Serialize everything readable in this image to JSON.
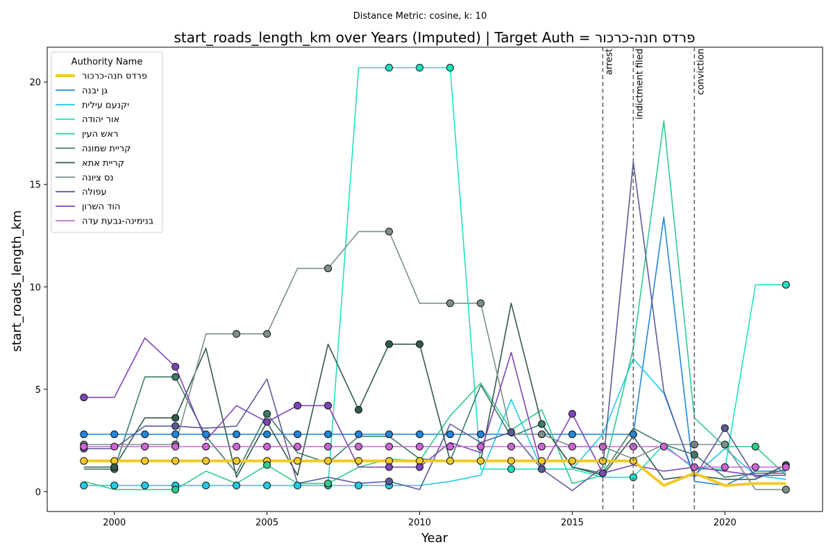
{
  "chart_data": {
    "type": "line",
    "suptitle": "Distance Metric: cosine, k: 10",
    "title": "start_roads_length_km over Years (Imputed) | Target Auth = פרדס חנה-כרכור",
    "xlabel": "Year",
    "ylabel": "start_roads_length_km",
    "xlim": [
      1997.8,
      2023.2
    ],
    "ylim": [
      -0.97,
      21.7
    ],
    "xticks": [
      2000,
      2005,
      2010,
      2015,
      2020
    ],
    "yticks": [
      0,
      5,
      10,
      15,
      20
    ],
    "grid": false,
    "legend": {
      "title": "Authority Name",
      "placement": "top-left"
    },
    "x": [
      1999,
      2000,
      2001,
      2002,
      2003,
      2004,
      2005,
      2006,
      2007,
      2008,
      2009,
      2010,
      2011,
      2012,
      2013,
      2014,
      2015,
      2016,
      2017,
      2018,
      2019,
      2020,
      2021,
      2022
    ],
    "events": [
      {
        "x": 2016,
        "label": "arrest"
      },
      {
        "x": 2017,
        "label": "indictment filed"
      },
      {
        "x": 2019,
        "label": "conviction"
      }
    ],
    "series": [
      {
        "name": "פרדס חנה-כרכור",
        "color": "#f2ca27",
        "target": true,
        "values": [
          1.5,
          1.5,
          1.5,
          1.5,
          1.5,
          1.5,
          1.5,
          1.5,
          1.5,
          1.5,
          1.5,
          1.5,
          1.5,
          1.5,
          1.5,
          1.5,
          1.5,
          1.5,
          1.5,
          0.3,
          0.9,
          0.3,
          0.4,
          0.4
        ],
        "markers": [
          1999,
          2000,
          2001,
          2002,
          2003,
          2004,
          2005,
          2006,
          2007,
          2008,
          2009,
          2010,
          2011,
          2012,
          2013,
          2014,
          2015,
          2016,
          2017
        ]
      },
      {
        "name": "גן יבנה",
        "color": "#2186d9",
        "values": [
          2.8,
          2.8,
          2.8,
          2.8,
          2.8,
          2.8,
          2.8,
          2.8,
          2.8,
          2.8,
          2.8,
          2.8,
          2.8,
          2.8,
          2.8,
          2.8,
          2.8,
          2.8,
          2.8,
          13.4,
          0.5,
          0.3,
          1.0,
          1.0
        ],
        "markers": [
          1999,
          2000,
          2001,
          2002,
          2003,
          2004,
          2005,
          2006,
          2007,
          2008,
          2009,
          2010,
          2011,
          2012,
          2015,
          2017
        ]
      },
      {
        "name": "יקנעם עילית",
        "color": "#1fcbe8",
        "values": [
          0.3,
          0.3,
          0.3,
          0.3,
          0.3,
          0.3,
          0.3,
          0.3,
          0.3,
          0.3,
          0.3,
          0.3,
          0.5,
          0.8,
          4.5,
          1.1,
          1.1,
          2.8,
          6.5,
          4.8,
          0.8,
          2.1,
          0.8,
          0.6
        ],
        "markers": [
          1999,
          2000,
          2001,
          2002,
          2003,
          2004,
          2005,
          2006,
          2007,
          2008,
          2009
        ]
      },
      {
        "name": "אור יהודה",
        "color": "#1de2bf",
        "values": [
          0.3,
          0.3,
          0.3,
          0.3,
          0.3,
          0.3,
          0.3,
          0.3,
          0.3,
          20.7,
          20.7,
          20.7,
          20.7,
          1.1,
          1.1,
          1.1,
          1.1,
          0.7,
          0.7,
          2.3,
          1.1,
          1.1,
          10.1,
          10.1
        ],
        "markers": [
          2009,
          2010,
          2011,
          2013,
          2017,
          2022
        ]
      },
      {
        "name": "ראש העין",
        "color": "#2ecc8a",
        "values": [
          0.5,
          0.1,
          0.1,
          0.1,
          1.0,
          0.4,
          1.3,
          0.4,
          0.4,
          1.2,
          1.6,
          1.5,
          3.7,
          5.3,
          3.0,
          4.0,
          0.4,
          0.8,
          7.0,
          18.1,
          3.6,
          2.2,
          2.2,
          0.8
        ],
        "markers": [
          2002,
          2005,
          2007,
          2021
        ]
      },
      {
        "name": "קריית שמונה",
        "color": "#3d7b67",
        "values": [
          1.1,
          1.1,
          5.6,
          5.6,
          2.7,
          0.9,
          3.8,
          1.9,
          1.4,
          2.7,
          2.7,
          1.6,
          1.5,
          5.2,
          2.7,
          3.3,
          1.2,
          0.9,
          3.1,
          2.3,
          1.8,
          0.7,
          0.9,
          0.9
        ],
        "markers": [
          2000,
          2002,
          2005,
          2014,
          2019
        ]
      },
      {
        "name": "קריית אתא",
        "color": "#325a4c",
        "values": [
          1.2,
          1.2,
          3.6,
          3.6,
          7.0,
          0.7,
          3.4,
          0.8,
          7.2,
          4.0,
          7.2,
          7.2,
          1.5,
          1.5,
          9.2,
          3.3,
          1.2,
          0.8,
          2.7,
          0.6,
          0.8,
          0.6,
          0.6,
          1.3
        ],
        "markers": [
          2000,
          2002,
          2008,
          2009,
          2010,
          2022
        ]
      },
      {
        "name": "נס ציונה",
        "color": "#7c8f8b",
        "values": [
          2.3,
          2.3,
          2.3,
          2.3,
          7.7,
          7.7,
          7.7,
          10.9,
          10.9,
          12.7,
          12.7,
          9.2,
          9.2,
          9.2,
          2.8,
          2.8,
          2.2,
          2.2,
          1.6,
          2.3,
          2.3,
          2.3,
          0.1,
          0.1
        ],
        "markers": [
          1999,
          2002,
          2004,
          2005,
          2007,
          2009,
          2011,
          2012,
          2014,
          2016,
          2019,
          2020,
          2022
        ]
      },
      {
        "name": "עפולה",
        "color": "#5a5b9a",
        "values": [
          2.1,
          2.1,
          3.2,
          3.2,
          3.1,
          3.2,
          5.5,
          0.4,
          0.7,
          0.4,
          0.5,
          0.1,
          3.3,
          2.4,
          2.9,
          1.1,
          0.05,
          1.2,
          16.1,
          4.9,
          0.7,
          3.1,
          0.7,
          1.1
        ],
        "markers": [
          1999,
          2002,
          2009,
          2013,
          2014,
          2020
        ]
      },
      {
        "name": "הוד השרון",
        "color": "#7e44b8",
        "values": [
          4.6,
          4.6,
          7.5,
          6.1,
          2.5,
          4.2,
          3.4,
          4.2,
          4.2,
          1.2,
          1.2,
          1.2,
          2.4,
          1.9,
          6.8,
          1.1,
          3.8,
          0.9,
          1.3,
          1.0,
          1.2,
          1.0,
          0.8,
          0.8
        ],
        "markers": [
          1999,
          2002,
          2005,
          2006,
          2007,
          2009,
          2010,
          2015,
          2016
        ]
      },
      {
        "name": "בנימינה-גבעת עדה",
        "color": "#cc66d6",
        "values": [
          2.2,
          2.2,
          2.2,
          2.2,
          2.2,
          2.2,
          2.2,
          2.2,
          2.2,
          2.2,
          2.2,
          2.2,
          2.2,
          2.2,
          2.2,
          2.2,
          2.2,
          2.2,
          2.2,
          2.2,
          1.2,
          1.2,
          1.2,
          1.2
        ],
        "markers": [
          1999,
          2000,
          2001,
          2002,
          2003,
          2004,
          2005,
          2006,
          2007,
          2008,
          2009,
          2010,
          2011,
          2012,
          2013,
          2014,
          2015,
          2016,
          2017,
          2018,
          2019,
          2020,
          2021,
          2022
        ]
      }
    ]
  }
}
